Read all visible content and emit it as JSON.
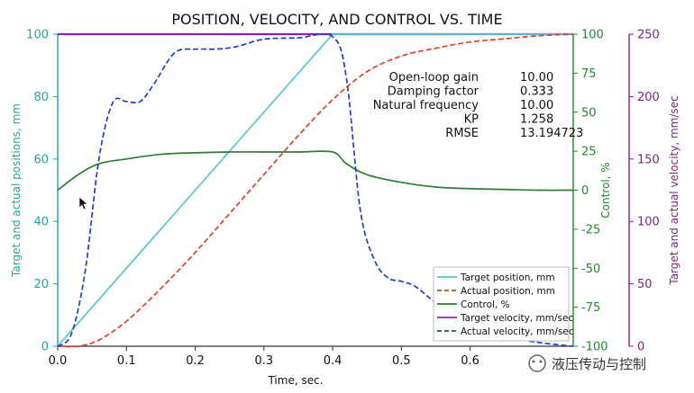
{
  "chart_data": {
    "type": "line",
    "title": "POSITION, VELOCITY, AND CONTROL VS. TIME",
    "xlabel": "Time, sec.",
    "xlim": [
      0,
      0.75
    ],
    "x_ticks": [
      "0.0",
      "0.1",
      "0.2",
      "0.3",
      "0.4",
      "0.5",
      "0.6"
    ],
    "axes": {
      "left": {
        "label": "Target and actual positions, mm",
        "ylim": [
          0,
          100
        ],
        "ticks": [
          "0",
          "20",
          "40",
          "60",
          "80",
          "100"
        ],
        "color": "#17a9a9"
      },
      "right_inner": {
        "label": "Control, %",
        "ylim": [
          -100,
          100
        ],
        "ticks": [
          "-100",
          "-75",
          "-50",
          "-25",
          "0",
          "25",
          "50",
          "75",
          "100"
        ],
        "color": "#1f8a2a"
      },
      "right_outer": {
        "label": "Target and actual velocity, mm/sec",
        "ylim": [
          0,
          250
        ],
        "ticks": [
          "0",
          "50",
          "100",
          "150",
          "200",
          "250"
        ],
        "color": "#8a1d8a"
      }
    },
    "grid": false,
    "legend_position": "bottom-right",
    "annotations": [
      {
        "label": "Open-loop gain",
        "value": "10.00"
      },
      {
        "label": "Damping factor",
        "value": "0.333"
      },
      {
        "label": "Natural frequency",
        "value": "10.00"
      },
      {
        "label": "KP",
        "value": "1.258"
      },
      {
        "label": "RMSE",
        "value": "13.194723"
      }
    ],
    "series": [
      {
        "name": "Target position, mm",
        "axis": "left",
        "color": "#57c5d0",
        "style": "solid",
        "x": [
          0,
          0.4,
          0.75
        ],
        "y": [
          0,
          100,
          100
        ]
      },
      {
        "name": "Actual position, mm",
        "axis": "left",
        "color": "#e0402f",
        "style": "dashed",
        "x": [
          0,
          0.03,
          0.06,
          0.1,
          0.15,
          0.2,
          0.25,
          0.3,
          0.35,
          0.4,
          0.45,
          0.5,
          0.55,
          0.6,
          0.65,
          0.7,
          0.75
        ],
        "y": [
          0,
          0,
          2,
          8,
          18.5,
          30,
          42.5,
          55,
          67.5,
          79,
          88,
          93,
          95.5,
          97.5,
          98.5,
          99.5,
          100
        ]
      },
      {
        "name": "Control, %",
        "axis": "right_inner",
        "color": "#2e7d32",
        "style": "solid",
        "x": [
          0,
          0.03,
          0.06,
          0.1,
          0.15,
          0.2,
          0.25,
          0.3,
          0.35,
          0.4,
          0.42,
          0.45,
          0.5,
          0.55,
          0.6,
          0.65,
          0.7,
          0.75
        ],
        "y": [
          0,
          10,
          17,
          20,
          23,
          24,
          24.5,
          24.5,
          24.5,
          24.5,
          17,
          10,
          5,
          2,
          1,
          0.5,
          0,
          0
        ]
      },
      {
        "name": "Target velocity, mm/sec",
        "axis": "right_outer",
        "color": "#8e24aa",
        "style": "solid",
        "x": [
          0,
          0.4,
          0.75
        ],
        "y": [
          250,
          250,
          250
        ]
      },
      {
        "name": "Actual velocity, mm/sec",
        "axis": "right_outer",
        "color": "#1f3fd0",
        "style": "dashed",
        "x": [
          0,
          0.02,
          0.04,
          0.06,
          0.08,
          0.1,
          0.12,
          0.14,
          0.17,
          0.2,
          0.23,
          0.26,
          0.3,
          0.35,
          0.4,
          0.42,
          0.44,
          0.46,
          0.48,
          0.5,
          0.52,
          0.55,
          0.6,
          0.65,
          0.7,
          0.75
        ],
        "y": [
          0,
          10,
          60,
          150,
          195,
          196,
          196,
          210,
          235,
          238,
          238,
          240,
          246,
          247,
          248,
          215,
          110,
          70,
          55,
          52,
          48,
          35,
          18,
          8,
          3,
          0
        ]
      }
    ]
  },
  "watermark": "液压传动与控制"
}
